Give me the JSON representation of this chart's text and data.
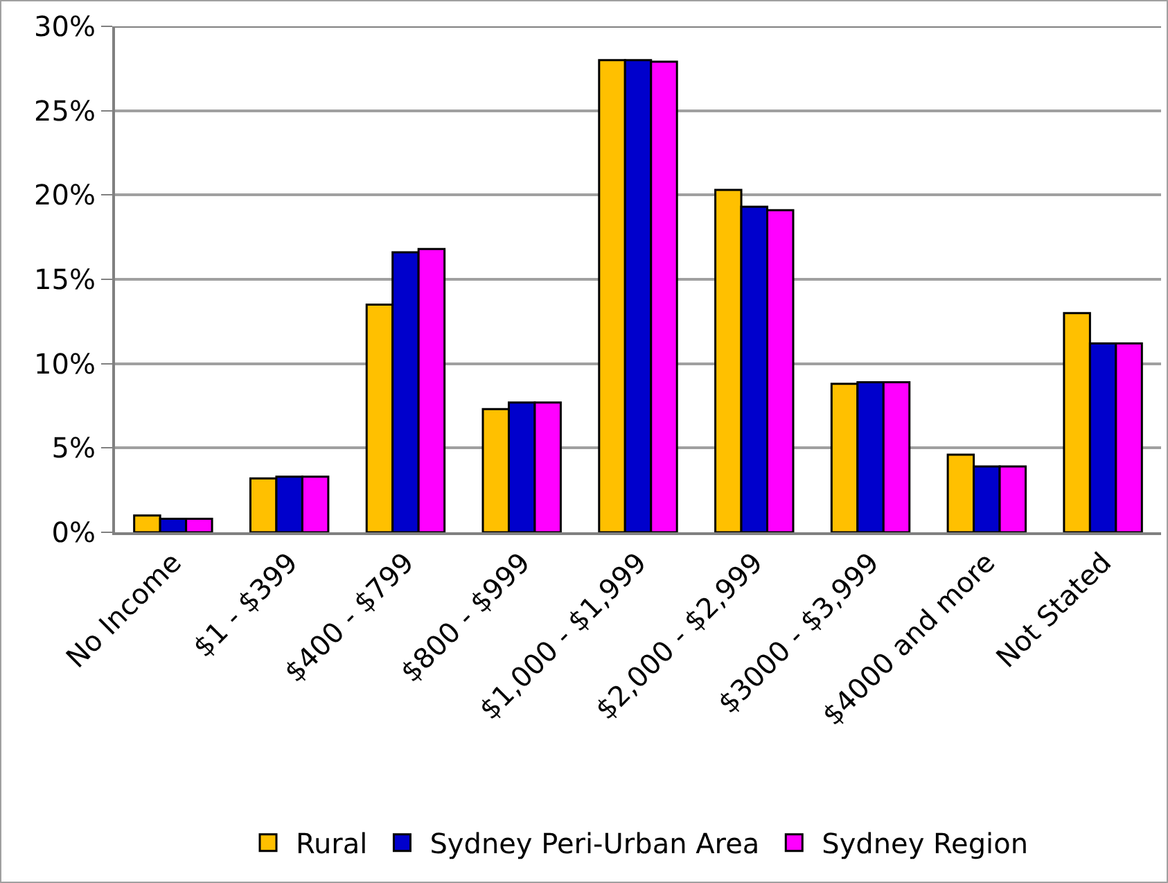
{
  "chart_data": {
    "type": "bar",
    "categories": [
      "No Income",
      "$1 - $399",
      "$400 - $799",
      "$800 - $999",
      "$1,000 - $1,999",
      "$2,000 - $2,999",
      "$3000 - $3,999",
      "$4000 and more",
      "Not Stated"
    ],
    "series": [
      {
        "name": "Rural",
        "color": "#ffc000",
        "values": [
          1.0,
          3.2,
          13.5,
          7.3,
          28.0,
          20.3,
          8.8,
          4.6,
          13.0
        ]
      },
      {
        "name": "Sydney Peri-Urban Area",
        "color": "#0000cc",
        "values": [
          0.8,
          3.3,
          16.6,
          7.7,
          28.0,
          19.3,
          8.9,
          3.9,
          11.2
        ]
      },
      {
        "name": "Sydney Region",
        "color": "#ff00ff",
        "values": [
          0.8,
          3.3,
          16.8,
          7.7,
          27.9,
          19.1,
          8.9,
          3.9,
          11.2
        ]
      }
    ],
    "ylim": [
      0,
      30
    ],
    "yticks": [
      {
        "value": 0,
        "label": "0%"
      },
      {
        "value": 5,
        "label": "5%"
      },
      {
        "value": 10,
        "label": "10%"
      },
      {
        "value": 15,
        "label": "15%"
      },
      {
        "value": 20,
        "label": "20%"
      },
      {
        "value": 25,
        "label": "25%"
      },
      {
        "value": 30,
        "label": "30%"
      }
    ],
    "grid": "y",
    "legend": "bottom"
  }
}
